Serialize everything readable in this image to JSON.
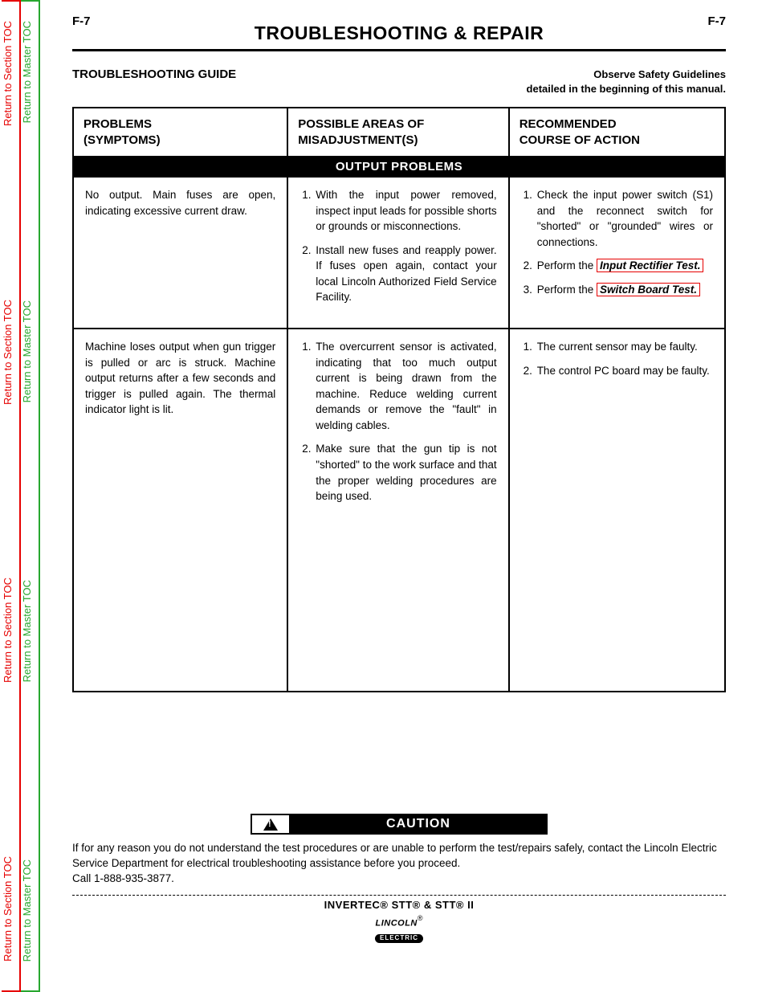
{
  "page_number": "F-7",
  "page_title": "TROUBLESHOOTING & REPAIR",
  "subhead_left": "TROUBLESHOOTING GUIDE",
  "subhead_right_l1": "Observe Safety Guidelines",
  "subhead_right_l2": "detailed in the beginning of this manual.",
  "side_tabs": {
    "section": "Return to Section TOC",
    "master": "Return to Master TOC"
  },
  "table": {
    "headers": {
      "c1_l1": "PROBLEMS",
      "c1_l2": "(SYMPTOMS)",
      "c2_l1": "POSSIBLE AREAS OF",
      "c2_l2": "MISADJUSTMENT(S)",
      "c3_l1": "RECOMMENDED",
      "c3_l2": "COURSE OF ACTION"
    },
    "section_label": "OUTPUT PROBLEMS",
    "row1": {
      "symptom": "No output.  Main fuses are open, indicating excessive current draw.",
      "misadj": [
        "With the input power removed, inspect input leads for possible shorts or grounds or misconnections.",
        "Install new fuses and reapply power.  If fuses open again, contact your local Lincoln Authorized Field Service Facility."
      ],
      "action_1_pre": "Check the input power switch (S1) and the reconnect switch for \"shorted\" or \"grounded\" wires or connections.",
      "action_2_pre": "Perform the ",
      "action_2_link": "Input Rectifier Test.",
      "action_3_pre": "Perform the ",
      "action_3_link": "Switch Board Test."
    },
    "row2": {
      "symptom": "Machine loses output when gun trigger is pulled or arc is struck. Machine output returns after a few seconds and trigger is pulled again. The thermal indicator light is lit.",
      "misadj": [
        "The overcurrent sensor is activated, indicating that too much output current is being drawn from the machine.  Reduce welding current demands or remove the \"fault\" in welding cables.",
        "Make sure that the gun tip is not \"shorted\" to the work surface and that the proper welding procedures are being used."
      ],
      "action": [
        "The current sensor may be faulty.",
        "The control PC board may be faulty."
      ]
    }
  },
  "caution": {
    "label": "CAUTION",
    "text_l1": "If for any reason you do not understand the test procedures or are unable to perform the test/repairs safely, contact the Lincoln Electric Service Department for electrical troubleshooting assistance before you proceed.",
    "text_l2": "Call 1-888-935-3877."
  },
  "footer": {
    "model": "INVERTEC® STT® & STT® II",
    "logo_top": "LINCOLN",
    "logo_bot": "ELECTRIC"
  },
  "colors": {
    "red": "#e60000",
    "green": "#27a72f",
    "black": "#000000",
    "white": "#ffffff"
  }
}
